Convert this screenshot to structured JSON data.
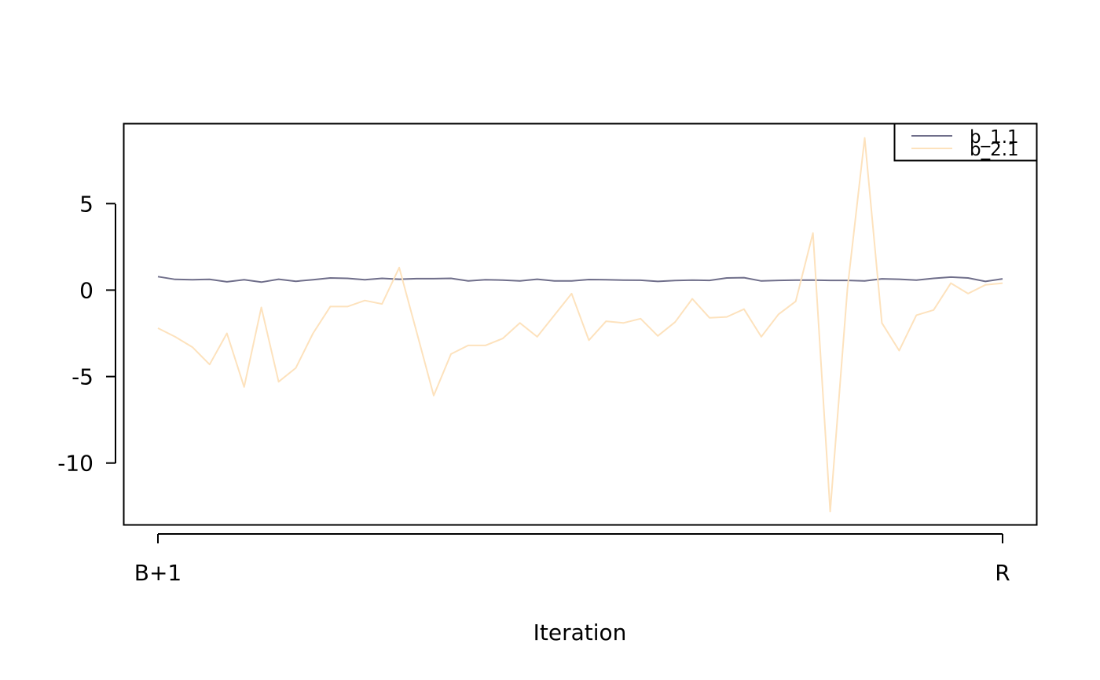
{
  "chart_data": {
    "type": "line",
    "title": "",
    "xlabel": "Iteration",
    "ylabel": "",
    "x_tick_labels": [
      "B+1",
      "R"
    ],
    "y_ticks": [
      5,
      0,
      -5,
      -10
    ],
    "ylim": [
      -13.6,
      9.6
    ],
    "legend_position": "top-right",
    "grid": false,
    "series": [
      {
        "name": "b_1.1",
        "color": "#6f6e8a",
        "values": [
          0.78,
          0.62,
          0.6,
          0.62,
          0.48,
          0.6,
          0.46,
          0.63,
          0.51,
          0.6,
          0.7,
          0.68,
          0.6,
          0.68,
          0.63,
          0.66,
          0.66,
          0.68,
          0.53,
          0.6,
          0.58,
          0.53,
          0.63,
          0.53,
          0.53,
          0.61,
          0.6,
          0.58,
          0.57,
          0.5,
          0.55,
          0.58,
          0.56,
          0.7,
          0.72,
          0.53,
          0.56,
          0.58,
          0.58,
          0.56,
          0.56,
          0.53,
          0.65,
          0.63,
          0.58,
          0.68,
          0.75,
          0.7,
          0.5,
          0.65
        ]
      },
      {
        "name": "b_2.1",
        "color": "#fde2bd",
        "values": [
          -2.2,
          -2.7,
          -3.3,
          -4.3,
          -2.5,
          -5.6,
          -1.0,
          -5.3,
          -4.5,
          -2.5,
          -0.95,
          -0.95,
          -0.6,
          -0.8,
          1.3,
          -2.4,
          -6.1,
          -3.7,
          -3.2,
          -3.2,
          -2.8,
          -1.9,
          -2.7,
          -1.45,
          -0.2,
          -2.9,
          -1.8,
          -1.9,
          -1.65,
          -2.65,
          -1.85,
          -0.5,
          -1.6,
          -1.55,
          -1.1,
          -2.7,
          -1.4,
          -0.65,
          3.3,
          -12.8,
          0.1,
          8.8,
          -1.9,
          -3.5,
          -1.45,
          -1.15,
          0.4,
          -0.2,
          0.3,
          0.4
        ]
      }
    ]
  }
}
